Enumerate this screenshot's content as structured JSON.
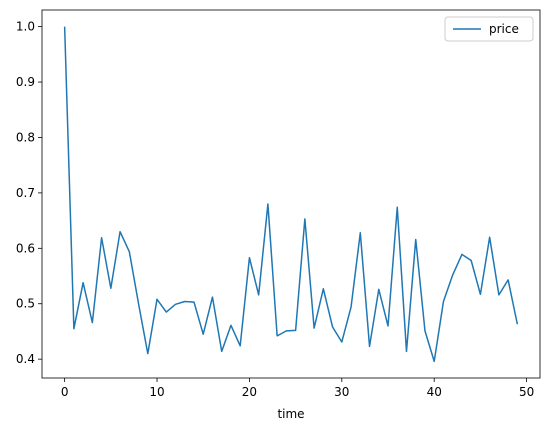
{
  "chart_data": {
    "type": "line",
    "x_label": "time",
    "x": [
      0,
      1,
      2,
      3,
      4,
      5,
      6,
      7,
      8,
      9,
      10,
      11,
      12,
      13,
      14,
      15,
      16,
      17,
      18,
      19,
      20,
      21,
      22,
      23,
      24,
      25,
      26,
      27,
      28,
      29,
      30,
      31,
      32,
      33,
      34,
      35,
      36,
      37,
      38,
      39,
      40,
      41,
      42,
      43,
      44,
      45,
      46,
      47,
      48,
      49
    ],
    "series": [
      {
        "name": "price",
        "color": "#1f77b4",
        "values": [
          1.0,
          0.455,
          0.538,
          0.466,
          0.619,
          0.528,
          0.63,
          0.594,
          0.5,
          0.41,
          0.508,
          0.485,
          0.499,
          0.504,
          0.503,
          0.445,
          0.512,
          0.414,
          0.461,
          0.424,
          0.583,
          0.516,
          0.68,
          0.442,
          0.451,
          0.452,
          0.653,
          0.456,
          0.527,
          0.458,
          0.431,
          0.494,
          0.628,
          0.423,
          0.526,
          0.46,
          0.674,
          0.414,
          0.616,
          0.451,
          0.396,
          0.504,
          0.552,
          0.589,
          0.578,
          0.517,
          0.62,
          0.516,
          0.543,
          0.463
        ]
      }
    ],
    "xlim": [
      -2.45,
      51.45
    ],
    "xticks": [
      0,
      10,
      20,
      30,
      40,
      50
    ],
    "ylim": [
      0.366,
      1.03
    ],
    "yticks": [
      0.4,
      0.5,
      0.6,
      0.7,
      0.8,
      0.9,
      {
        "value": 1.0,
        "label": "1.0"
      }
    ],
    "grid": false,
    "legend": "upper right"
  }
}
